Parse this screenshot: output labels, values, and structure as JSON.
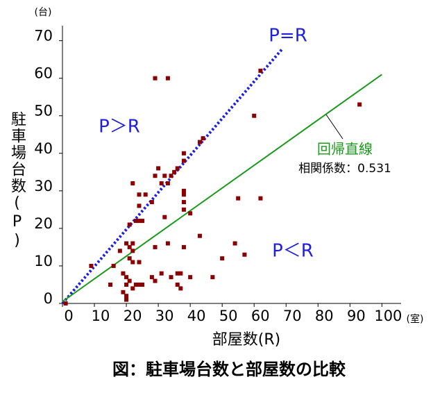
{
  "chart_data": {
    "type": "scatter",
    "caption": "図：駐車場台数と部屋数の比較",
    "x_label": "部屋数(R)",
    "y_label": "駐車場台数(P)",
    "x_unit": "(室)",
    "y_unit": "(台)",
    "xlim": [
      0,
      106
    ],
    "ylim": [
      0,
      74
    ],
    "xticks": [
      0,
      10,
      20,
      30,
      40,
      50,
      60,
      70,
      80,
      90,
      100
    ],
    "yticks": [
      0,
      10,
      20,
      30,
      40,
      50,
      60,
      70
    ],
    "color": "#8b0000",
    "x": [
      29,
      33,
      62,
      93,
      60,
      44,
      43,
      62,
      55,
      30,
      32,
      29,
      36,
      35,
      34,
      38,
      38,
      22,
      33,
      31,
      38,
      38,
      24,
      26,
      28,
      38,
      38,
      24,
      40,
      32,
      21,
      23,
      24,
      25,
      43,
      33,
      54,
      29,
      22,
      20,
      21,
      22,
      38,
      18,
      57,
      50,
      21,
      24,
      22,
      16,
      9,
      19,
      36,
      37,
      31,
      40,
      47,
      28,
      20,
      34,
      21,
      29,
      24,
      23,
      25,
      36,
      15,
      20,
      37,
      19,
      22,
      20,
      20,
      1
    ],
    "values": [
      60,
      60,
      62,
      53,
      50,
      44,
      43,
      28,
      28,
      36,
      34,
      34,
      36,
      35,
      34,
      38,
      40,
      32,
      32,
      32,
      30,
      29,
      29,
      29,
      27,
      27,
      25,
      26,
      24,
      23,
      21,
      22,
      22,
      22,
      18,
      16,
      16,
      15,
      16,
      16,
      15,
      14,
      15,
      14,
      13,
      12,
      12,
      11,
      11,
      10,
      10,
      8,
      8,
      8,
      8,
      7,
      7,
      7,
      7,
      7,
      6,
      6,
      5,
      5,
      5,
      5,
      5,
      5,
      4,
      3,
      4,
      2,
      1,
      0
    ],
    "trendline": {
      "x": [
        0,
        100
      ],
      "y": [
        0.5,
        61
      ],
      "color": "#1a9a1a"
    },
    "identity_line": {
      "x": [
        0,
        69
      ],
      "y": [
        0,
        68
      ],
      "color": "#1f1fe0"
    },
    "annotations": {
      "identity": "P=R",
      "above": "P＞R",
      "below": "P＜R",
      "trend": "回帰直線",
      "correlation": "相関係数：0.531"
    }
  }
}
